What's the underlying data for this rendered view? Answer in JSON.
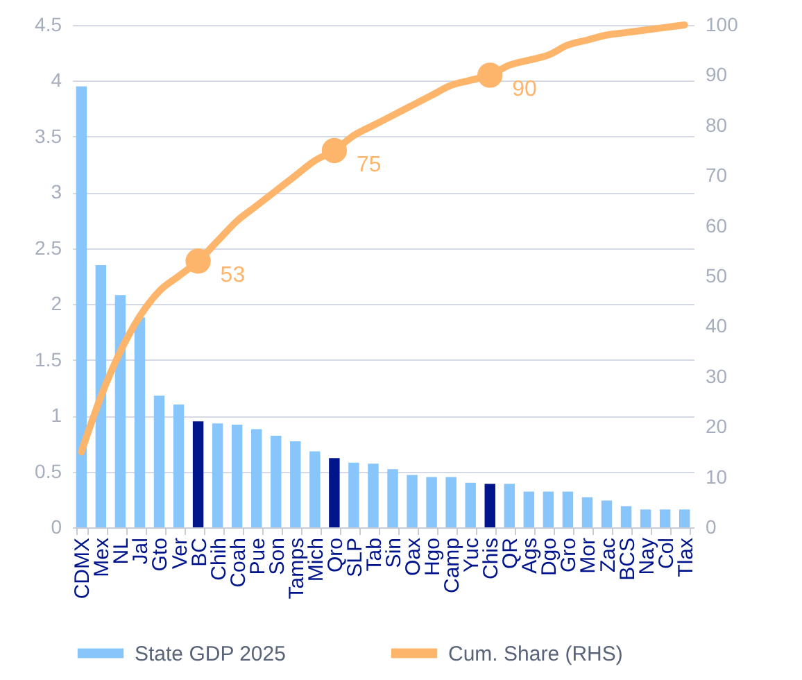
{
  "chart_data": {
    "type": "bar",
    "categories": [
      "CDMX",
      "Mex",
      "NL",
      "Jal",
      "Gto",
      "Ver",
      "BC",
      "Chih",
      "Coah",
      "Pue",
      "Son",
      "Tamps",
      "Mich",
      "Qro",
      "SLP",
      "Tab",
      "Sin",
      "Oax",
      "Hgo",
      "Camp",
      "Yuc",
      "Chis",
      "QR",
      "Ags",
      "Dgo",
      "Gro",
      "Mor",
      "Zac",
      "BCS",
      "Nay",
      "Col",
      "Tlax"
    ],
    "series": [
      {
        "name": "State GDP 2025",
        "color": "#87c5fa",
        "colors": [
          "#87c5fa",
          "#87c5fa",
          "#87c5fa",
          "#87c5fa",
          "#87c5fa",
          "#87c5fa",
          "#00148c",
          "#87c5fa",
          "#87c5fa",
          "#87c5fa",
          "#87c5fa",
          "#87c5fa",
          "#87c5fa",
          "#00148c",
          "#87c5fa",
          "#87c5fa",
          "#87c5fa",
          "#87c5fa",
          "#87c5fa",
          "#87c5fa",
          "#87c5fa",
          "#00148c",
          "#87c5fa",
          "#87c5fa",
          "#87c5fa",
          "#87c5fa",
          "#87c5fa",
          "#87c5fa",
          "#87c5fa",
          "#87c5fa",
          "#87c5fa",
          "#87c5fa"
        ],
        "values": [
          3.95,
          2.35,
          2.08,
          1.88,
          1.18,
          1.1,
          0.95,
          0.93,
          0.92,
          0.88,
          0.82,
          0.77,
          0.68,
          0.62,
          0.58,
          0.57,
          0.52,
          0.47,
          0.45,
          0.45,
          0.4,
          0.39,
          0.39,
          0.32,
          0.32,
          0.32,
          0.27,
          0.24,
          0.19,
          0.16,
          0.16,
          0.16
        ]
      },
      {
        "name": "Cum. Share (RHS)",
        "type": "line",
        "axis": "y2",
        "color": "#fdb46b",
        "values": [
          15,
          26,
          35,
          42,
          47,
          50,
          53,
          57,
          61,
          64,
          67,
          70,
          73,
          75,
          78,
          80,
          82,
          84,
          86,
          88,
          89,
          90,
          92,
          93,
          94,
          96,
          97,
          98,
          98.5,
          99,
          99.5,
          100
        ],
        "value_labels": [
          null,
          null,
          null,
          null,
          null,
          null,
          "53",
          null,
          null,
          null,
          null,
          null,
          null,
          "75",
          null,
          null,
          null,
          null,
          null,
          null,
          null,
          "90",
          null,
          null,
          null,
          null,
          null,
          null,
          null,
          null,
          null,
          null
        ]
      }
    ],
    "ylim": [
      0,
      4.5
    ],
    "yticks": [
      0,
      0.5,
      1,
      1.5,
      2,
      2.5,
      3,
      3.5,
      4,
      4.5
    ],
    "y2lim": [
      0,
      100
    ],
    "y2ticks": [
      0,
      10,
      20,
      30,
      40,
      50,
      60,
      70,
      80,
      90,
      100
    ],
    "grid": "y",
    "legend": "bottom"
  }
}
